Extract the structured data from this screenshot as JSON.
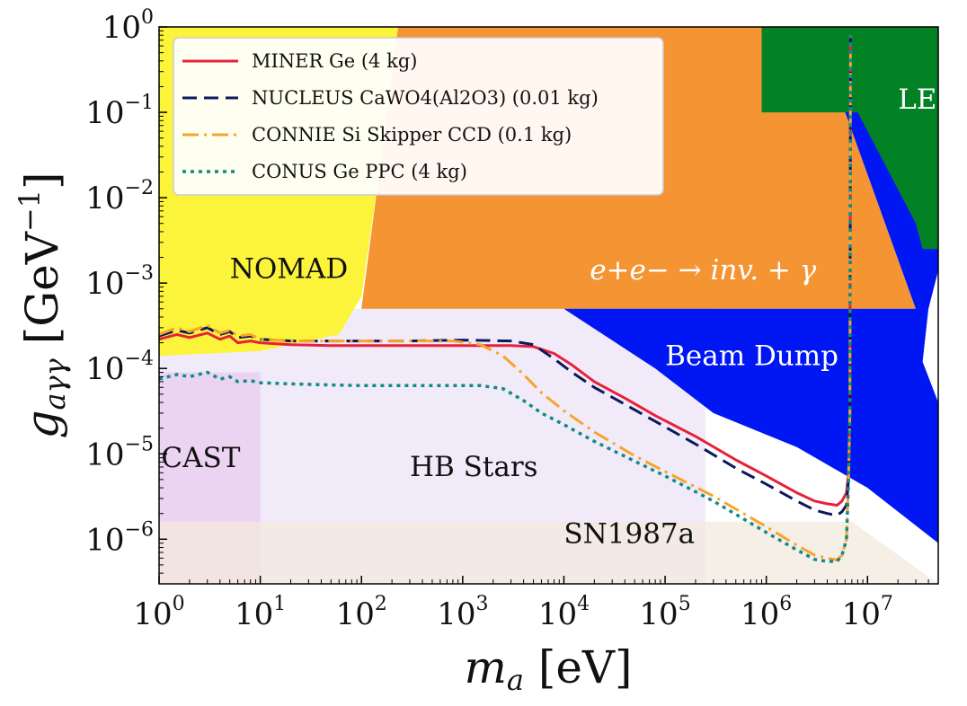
{
  "chart_data": {
    "type": "line",
    "title": "",
    "xlabel": "m_a [eV]",
    "ylabel": "g_aγγ [GeV^-1]",
    "x_scale": "log",
    "y_scale": "log",
    "xlim": [
      1,
      50000000
    ],
    "ylim": [
      3e-07,
      1
    ],
    "grid": false,
    "legend_position": "top-left",
    "x_ticks": [
      {
        "base": "10",
        "exp": "0"
      },
      {
        "base": "10",
        "exp": "1"
      },
      {
        "base": "10",
        "exp": "2"
      },
      {
        "base": "10",
        "exp": "3"
      },
      {
        "base": "10",
        "exp": "4"
      },
      {
        "base": "10",
        "exp": "5"
      },
      {
        "base": "10",
        "exp": "6"
      },
      {
        "base": "10",
        "exp": "7"
      }
    ],
    "y_ticks": [
      {
        "base": "10",
        "exp": "0"
      },
      {
        "base": "10",
        "exp": "−1"
      },
      {
        "base": "10",
        "exp": "−2"
      },
      {
        "base": "10",
        "exp": "−3"
      },
      {
        "base": "10",
        "exp": "−4"
      },
      {
        "base": "10",
        "exp": "−5"
      },
      {
        "base": "10",
        "exp": "−6"
      }
    ],
    "regions": [
      {
        "name": "HB Stars",
        "label": "HB Stars",
        "color": "#e9e1f6",
        "opacity": 0.65,
        "label_color": "#111111",
        "polygon": [
          [
            1,
            0.0005
          ],
          [
            250000,
            0.0005
          ],
          [
            250000,
            3e-07
          ],
          [
            1,
            3e-07
          ]
        ],
        "label_at": [
          300,
          5.5e-06
        ]
      },
      {
        "name": "CAST",
        "label": "CAST",
        "color": "#e3b9e8",
        "opacity": 0.45,
        "label_color": "#111111",
        "polygon": [
          [
            1,
            9e-05
          ],
          [
            10,
            9e-05
          ],
          [
            10,
            3e-07
          ],
          [
            1,
            3e-07
          ]
        ],
        "label_at": [
          1.05,
          7e-06
        ]
      },
      {
        "name": "NOMAD",
        "label": "NOMAD",
        "color": "#fcf43a",
        "opacity": 1,
        "label_color": "#111111",
        "polygon": [
          [
            1,
            1
          ],
          [
            230,
            1
          ],
          [
            150,
            0.02
          ],
          [
            100,
            0.0007
          ],
          [
            60,
            0.00025
          ],
          [
            10,
            0.00016
          ],
          [
            1,
            0.00014
          ]
        ],
        "label_at": [
          5,
          0.00115
        ]
      },
      {
        "name": "e+e- inv",
        "label": "e+e− → inv. + γ",
        "color": "#f38b22",
        "opacity": 0.92,
        "label_color": "#ffffff",
        "polygon": [
          [
            230,
            1
          ],
          [
            3000000,
            1
          ],
          [
            30000000,
            0.0005
          ],
          [
            1000,
            0.0005
          ],
          [
            100,
            0.0005
          ],
          [
            150,
            0.02
          ]
        ],
        "label_at": [
          18000,
          0.0011
        ]
      },
      {
        "name": "Beam Dump",
        "label": "Beam Dump",
        "color": "#0017f4",
        "opacity": 1,
        "label_color": "#ffffff",
        "polygon": [
          [
            600000,
            1
          ],
          [
            3000000,
            1
          ],
          [
            50000000,
            0.0025
          ],
          [
            50000000,
            0.0014
          ],
          [
            40000000,
            0.0005
          ],
          [
            35000000,
            0.00012
          ],
          [
            50000000,
            4e-05
          ],
          [
            50000000,
            9e-07
          ],
          [
            10000000,
            4e-06
          ],
          [
            2000000,
            1.2e-05
          ],
          [
            300000,
            3e-05
          ],
          [
            80000,
            0.0001
          ],
          [
            10000,
            0.0005
          ],
          [
            30000000,
            0.0005
          ],
          [
            3000000,
            1
          ]
        ],
        "label_at": [
          100000,
          0.00011
        ]
      },
      {
        "name": "SN1987a",
        "label": "SN1987a",
        "color": "#f3e9dd",
        "opacity": 0.75,
        "label_color": "#111111",
        "polygon": [
          [
            1,
            1.6e-06
          ],
          [
            7000000,
            1.6e-06
          ],
          [
            50000000,
            3e-07
          ],
          [
            1,
            3e-07
          ]
        ],
        "label_at": [
          10000,
          9e-07
        ]
      },
      {
        "name": "LEP",
        "label": "LEP",
        "color": "#038225",
        "opacity": 1,
        "label_color": "#ffffff",
        "polygon": [
          [
            900000,
            1
          ],
          [
            50000000,
            1
          ],
          [
            50000000,
            0.0025
          ],
          [
            35000000,
            0.0025
          ],
          [
            30000000,
            0.005
          ],
          [
            8000000,
            0.1
          ],
          [
            900000,
            0.1
          ]
        ],
        "label_at": [
          20000000,
          0.11
        ]
      }
    ],
    "series": [
      {
        "name": "MINER Ge (4 kg)",
        "color": "#e8213a",
        "dash": "",
        "width": 3,
        "x": [
          1,
          1.5,
          2,
          3,
          4,
          5,
          6,
          8,
          10,
          20,
          50,
          100,
          300,
          1000,
          3000,
          5000,
          8000,
          12000,
          20000,
          40000,
          80000,
          200000,
          500000,
          1000000,
          2000000,
          3000000,
          4000000,
          5000000,
          5600000,
          6200000,
          6500000,
          6700000,
          6800000
        ],
        "y": [
          0.00022,
          0.00025,
          0.00023,
          0.00026,
          0.00022,
          0.00024,
          0.0002,
          0.00021,
          0.0002,
          0.00019,
          0.000185,
          0.000185,
          0.000185,
          0.000185,
          0.000185,
          0.00018,
          0.00015,
          0.00011,
          7e-05,
          4.5e-05,
          2.8e-05,
          1.6e-05,
          8.5e-06,
          5.5e-06,
          3.5e-06,
          2.8e-06,
          2.6e-06,
          2.5e-06,
          2.8e-06,
          3.5e-06,
          6e-06,
          3e-05,
          0.8
        ]
      },
      {
        "name": "NUCLEUS CaWO4(Al2O3) (0.01 kg)",
        "color": "#0b1a5c",
        "dash": "16,8",
        "width": 3,
        "x": [
          1,
          1.5,
          2,
          3,
          4,
          5,
          6,
          8,
          10,
          20,
          50,
          100,
          300,
          1000,
          3000,
          5000,
          8000,
          12000,
          20000,
          40000,
          80000,
          200000,
          500000,
          1000000,
          2000000,
          3000000,
          4000000,
          5000000,
          5600000,
          6200000,
          6500000,
          6700000,
          6800000
        ],
        "y": [
          0.00024,
          0.00028,
          0.00026,
          0.0003,
          0.00025,
          0.00027,
          0.00023,
          0.00024,
          0.00022,
          0.00021,
          0.00021,
          0.00021,
          0.00021,
          0.000215,
          0.00021,
          0.00019,
          0.00013,
          9e-05,
          6e-05,
          3.8e-05,
          2.4e-05,
          1.3e-05,
          6.8e-06,
          4.4e-06,
          2.8e-06,
          2.2e-06,
          2e-06,
          1.9e-06,
          2.1e-06,
          2.5e-06,
          5e-06,
          3e-05,
          0.8
        ]
      },
      {
        "name": "CONNIE Si Skipper CCD (0.1 kg)",
        "color": "#f8a32b",
        "dash": "18,6,3,6",
        "width": 3,
        "x": [
          1,
          1.5,
          2,
          3,
          4,
          5,
          6,
          8,
          10,
          20,
          50,
          100,
          300,
          800,
          1500,
          2500,
          4000,
          6000,
          10000,
          20000,
          50000,
          100000,
          300000,
          1000000,
          2000000,
          3000000,
          4000000,
          5000000,
          5600000,
          6200000,
          6500000,
          6700000,
          6800000
        ],
        "y": [
          0.00025,
          0.0003,
          0.00027,
          0.00032,
          0.00026,
          0.00028,
          0.00024,
          0.00025,
          0.00022,
          0.00021,
          0.00021,
          0.00021,
          0.00021,
          0.00021,
          0.00019,
          0.00014,
          8.5e-05,
          5.2e-05,
          3.2e-05,
          1.8e-05,
          9.5e-06,
          6.2e-06,
          3.2e-06,
          1.4e-06,
          8.5e-07,
          6.5e-07,
          6e-07,
          5.7e-07,
          6.5e-07,
          1e-06,
          5e-06,
          3e-05,
          0.8
        ]
      },
      {
        "name": "CONUS Ge PPC (4 kg)",
        "color": "#118a8a",
        "dash": "4,5",
        "width": 3.5,
        "x": [
          1,
          1.5,
          2,
          3,
          4,
          5,
          6,
          8,
          10,
          20,
          50,
          100,
          300,
          800,
          1500,
          2500,
          4000,
          6000,
          10000,
          20000,
          50000,
          100000,
          300000,
          1000000,
          2000000,
          3000000,
          4000000,
          5000000,
          5600000,
          6200000,
          6500000,
          6700000,
          6800000
        ],
        "y": [
          7.5e-05,
          8.5e-05,
          8e-05,
          9e-05,
          7.5e-05,
          8e-05,
          7e-05,
          7.2e-05,
          6.8e-05,
          6.6e-05,
          6.4e-05,
          6.3e-05,
          6.3e-05,
          6.3e-05,
          6.3e-05,
          5.8e-05,
          4.2e-05,
          3e-05,
          2.2e-05,
          1.4e-05,
          8.2e-06,
          5.5e-06,
          2.8e-06,
          1.2e-06,
          7.5e-07,
          5.8e-07,
          5.5e-07,
          5.5e-07,
          6.5e-07,
          1e-06,
          5e-06,
          3e-05,
          0.8
        ]
      }
    ]
  }
}
